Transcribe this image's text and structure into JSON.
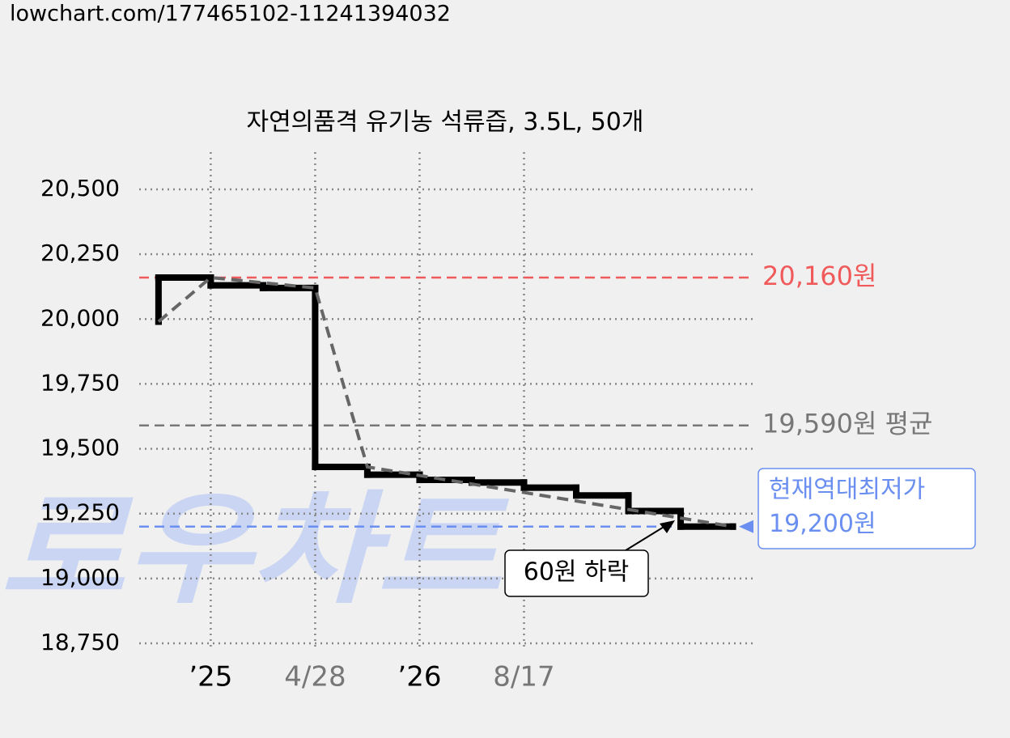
{
  "header": {
    "url": "lowchart.com/177465102-11241394032"
  },
  "chart_data": {
    "type": "step",
    "title": "자연의품격 유기농 석류즙, 3.5L, 50개",
    "watermark": "로우차트",
    "xlim": [
      -0.37,
      11.41
    ],
    "xticks": [
      {
        "value": 1,
        "label": "’25"
      },
      {
        "value": 3,
        "label": "4/28"
      },
      {
        "value": 5,
        "label": "’26"
      },
      {
        "value": 7,
        "label": "8/17"
      }
    ],
    "xtick_colors": [
      "#000000",
      "#777777",
      "#000000",
      "#777777"
    ],
    "ylim": [
      18750,
      20500
    ],
    "yticks": [
      {
        "value": 18750,
        "label": "18,750"
      },
      {
        "value": 19000,
        "label": "19,000"
      },
      {
        "value": 19250,
        "label": "19,250"
      },
      {
        "value": 19500,
        "label": "19,500"
      },
      {
        "value": 19750,
        "label": "19,750"
      },
      {
        "value": 20000,
        "label": "20,000"
      },
      {
        "value": 20250,
        "label": "20,250"
      },
      {
        "value": 20500,
        "label": "20,500"
      }
    ],
    "grid": true,
    "series": [
      {
        "kind": "step",
        "color": "#000000",
        "x": [
          0,
          0,
          1,
          2,
          3,
          4,
          5,
          6,
          7,
          8,
          9,
          10,
          11
        ],
        "values": [
          19990,
          20160,
          20130,
          20120,
          19430,
          19400,
          19380,
          19370,
          19350,
          19320,
          19260,
          19200,
          19200
        ]
      },
      {
        "kind": "trend",
        "color": "#666666",
        "x": [
          0,
          1,
          3,
          4,
          11
        ],
        "values": [
          19990,
          20160,
          20120,
          19430,
          19200
        ]
      }
    ],
    "reference_lines": [
      {
        "value": 20160,
        "label": "20,160원",
        "color": "#f05a5a"
      },
      {
        "value": 19590,
        "label": "19,590원 평균",
        "color": "#777777"
      },
      {
        "value": 19200,
        "label": "19,200원",
        "note": "현재역대최저가",
        "color": "#6a8ff0"
      }
    ],
    "annotation": {
      "text": "60원 하락"
    }
  }
}
